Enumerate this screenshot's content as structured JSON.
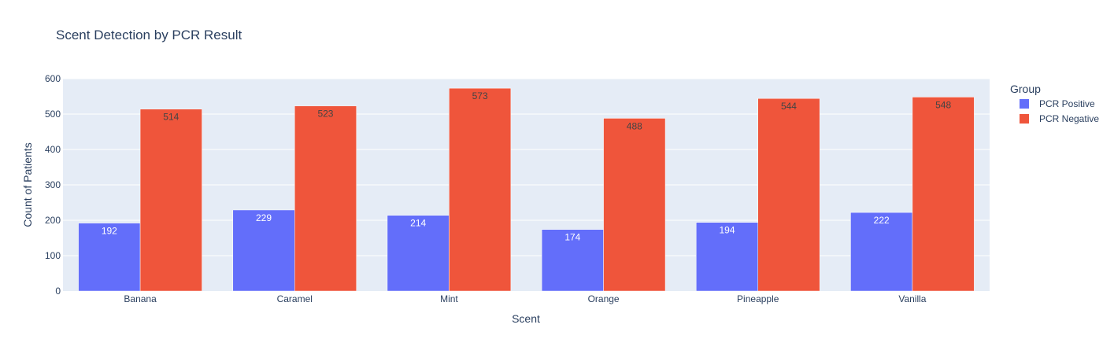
{
  "chart_data": {
    "type": "bar",
    "title": "Scent Detection by PCR Result",
    "xlabel": "Scent",
    "ylabel": "Count of Patients",
    "categories": [
      "Banana",
      "Caramel",
      "Mint",
      "Orange",
      "Pineapple",
      "Vanilla"
    ],
    "series": [
      {
        "name": "PCR Positive",
        "color": "#636efa",
        "label_color": "#ffffff",
        "values": [
          192,
          229,
          214,
          174,
          194,
          222
        ]
      },
      {
        "name": "PCR Negative",
        "color": "#ef553b",
        "label_color": "#444444",
        "values": [
          514,
          523,
          573,
          488,
          544,
          548
        ]
      }
    ],
    "ylim": [
      0,
      600
    ],
    "yticks": [
      0,
      100,
      200,
      300,
      400,
      500,
      600
    ],
    "legend_title": "Group",
    "legend_position": "right",
    "grid": true,
    "plot_background": "#e5ecf6"
  }
}
